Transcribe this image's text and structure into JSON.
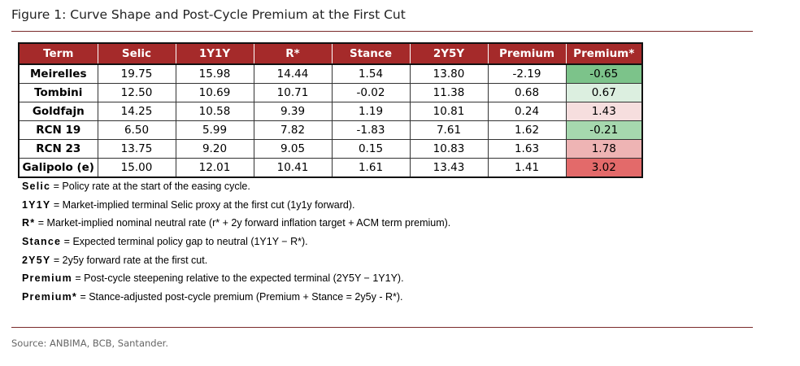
{
  "figure": {
    "title": "Figure 1: Curve Shape and Post-Cycle Premium at the First Cut",
    "source": "Source: ANBIMA, BCB, Santander."
  },
  "colors": {
    "header_bg": "#a52a2a",
    "rule": "#7a2a2a",
    "green_strong": "#7cc38a",
    "green_mid": "#a6d8ae",
    "green_light": "#dcefe0",
    "red_light": "#f6dede",
    "red_mid": "#eeb4b4",
    "red_strong": "#e36a6a"
  },
  "table": {
    "columns": [
      "Term",
      "Selic",
      "1Y1Y",
      "R*",
      "Stance",
      "2Y5Y",
      "Premium",
      "Premium*"
    ],
    "rows": [
      {
        "term": "Meirelles",
        "selic": "19.75",
        "y1y1": "15.98",
        "rstar": "14.44",
        "stance": "1.54",
        "y2y5": "13.80",
        "premium": "-2.19",
        "premium_star": "-0.65",
        "premium_star_color": "#7cc38a"
      },
      {
        "term": "Tombini",
        "selic": "12.50",
        "y1y1": "10.69",
        "rstar": "10.71",
        "stance": "-0.02",
        "y2y5": "11.38",
        "premium": "0.68",
        "premium_star": "0.67",
        "premium_star_color": "#dcefe0"
      },
      {
        "term": "Goldfajn",
        "selic": "14.25",
        "y1y1": "10.58",
        "rstar": "9.39",
        "stance": "1.19",
        "y2y5": "10.81",
        "premium": "0.24",
        "premium_star": "1.43",
        "premium_star_color": "#f6dede"
      },
      {
        "term": "RCN 19",
        "selic": "6.50",
        "y1y1": "5.99",
        "rstar": "7.82",
        "stance": "-1.83",
        "y2y5": "7.61",
        "premium": "1.62",
        "premium_star": "-0.21",
        "premium_star_color": "#a6d8ae"
      },
      {
        "term": "RCN 23",
        "selic": "13.75",
        "y1y1": "9.20",
        "rstar": "9.05",
        "stance": "0.15",
        "y2y5": "10.83",
        "premium": "1.63",
        "premium_star": "1.78",
        "premium_star_color": "#eeb4b4"
      },
      {
        "term": "Galipolo (e)",
        "selic": "15.00",
        "y1y1": "12.01",
        "rstar": "10.41",
        "stance": "1.61",
        "y2y5": "13.43",
        "premium": "1.41",
        "premium_star": "3.02",
        "premium_star_color": "#e36a6a"
      }
    ]
  },
  "notes": [
    {
      "key": "Selic",
      "text": " =  Policy rate at the start of the easing cycle."
    },
    {
      "key": "1Y1Y",
      "text": " =  Market-implied terminal Selic proxy at the first cut (1y1y forward)."
    },
    {
      "key": "R*",
      "text": " =  Market-implied nominal neutral rate (r* + 2y forward inflation target + ACM term premium)."
    },
    {
      "key": "Stance",
      "text": " =  Expected terminal policy gap to neutral (1Y1Y − R*)."
    },
    {
      "key": "2Y5Y",
      "text": " =  2y5y forward rate at the first cut."
    },
    {
      "key": "Premium",
      "text": " =  Post-cycle steepening relative to the expected terminal (2Y5Y − 1Y1Y)."
    },
    {
      "key": "Premium*",
      "text": " =  Stance-adjusted post-cycle premium (Premium + Stance = 2y5y - R*)."
    }
  ]
}
